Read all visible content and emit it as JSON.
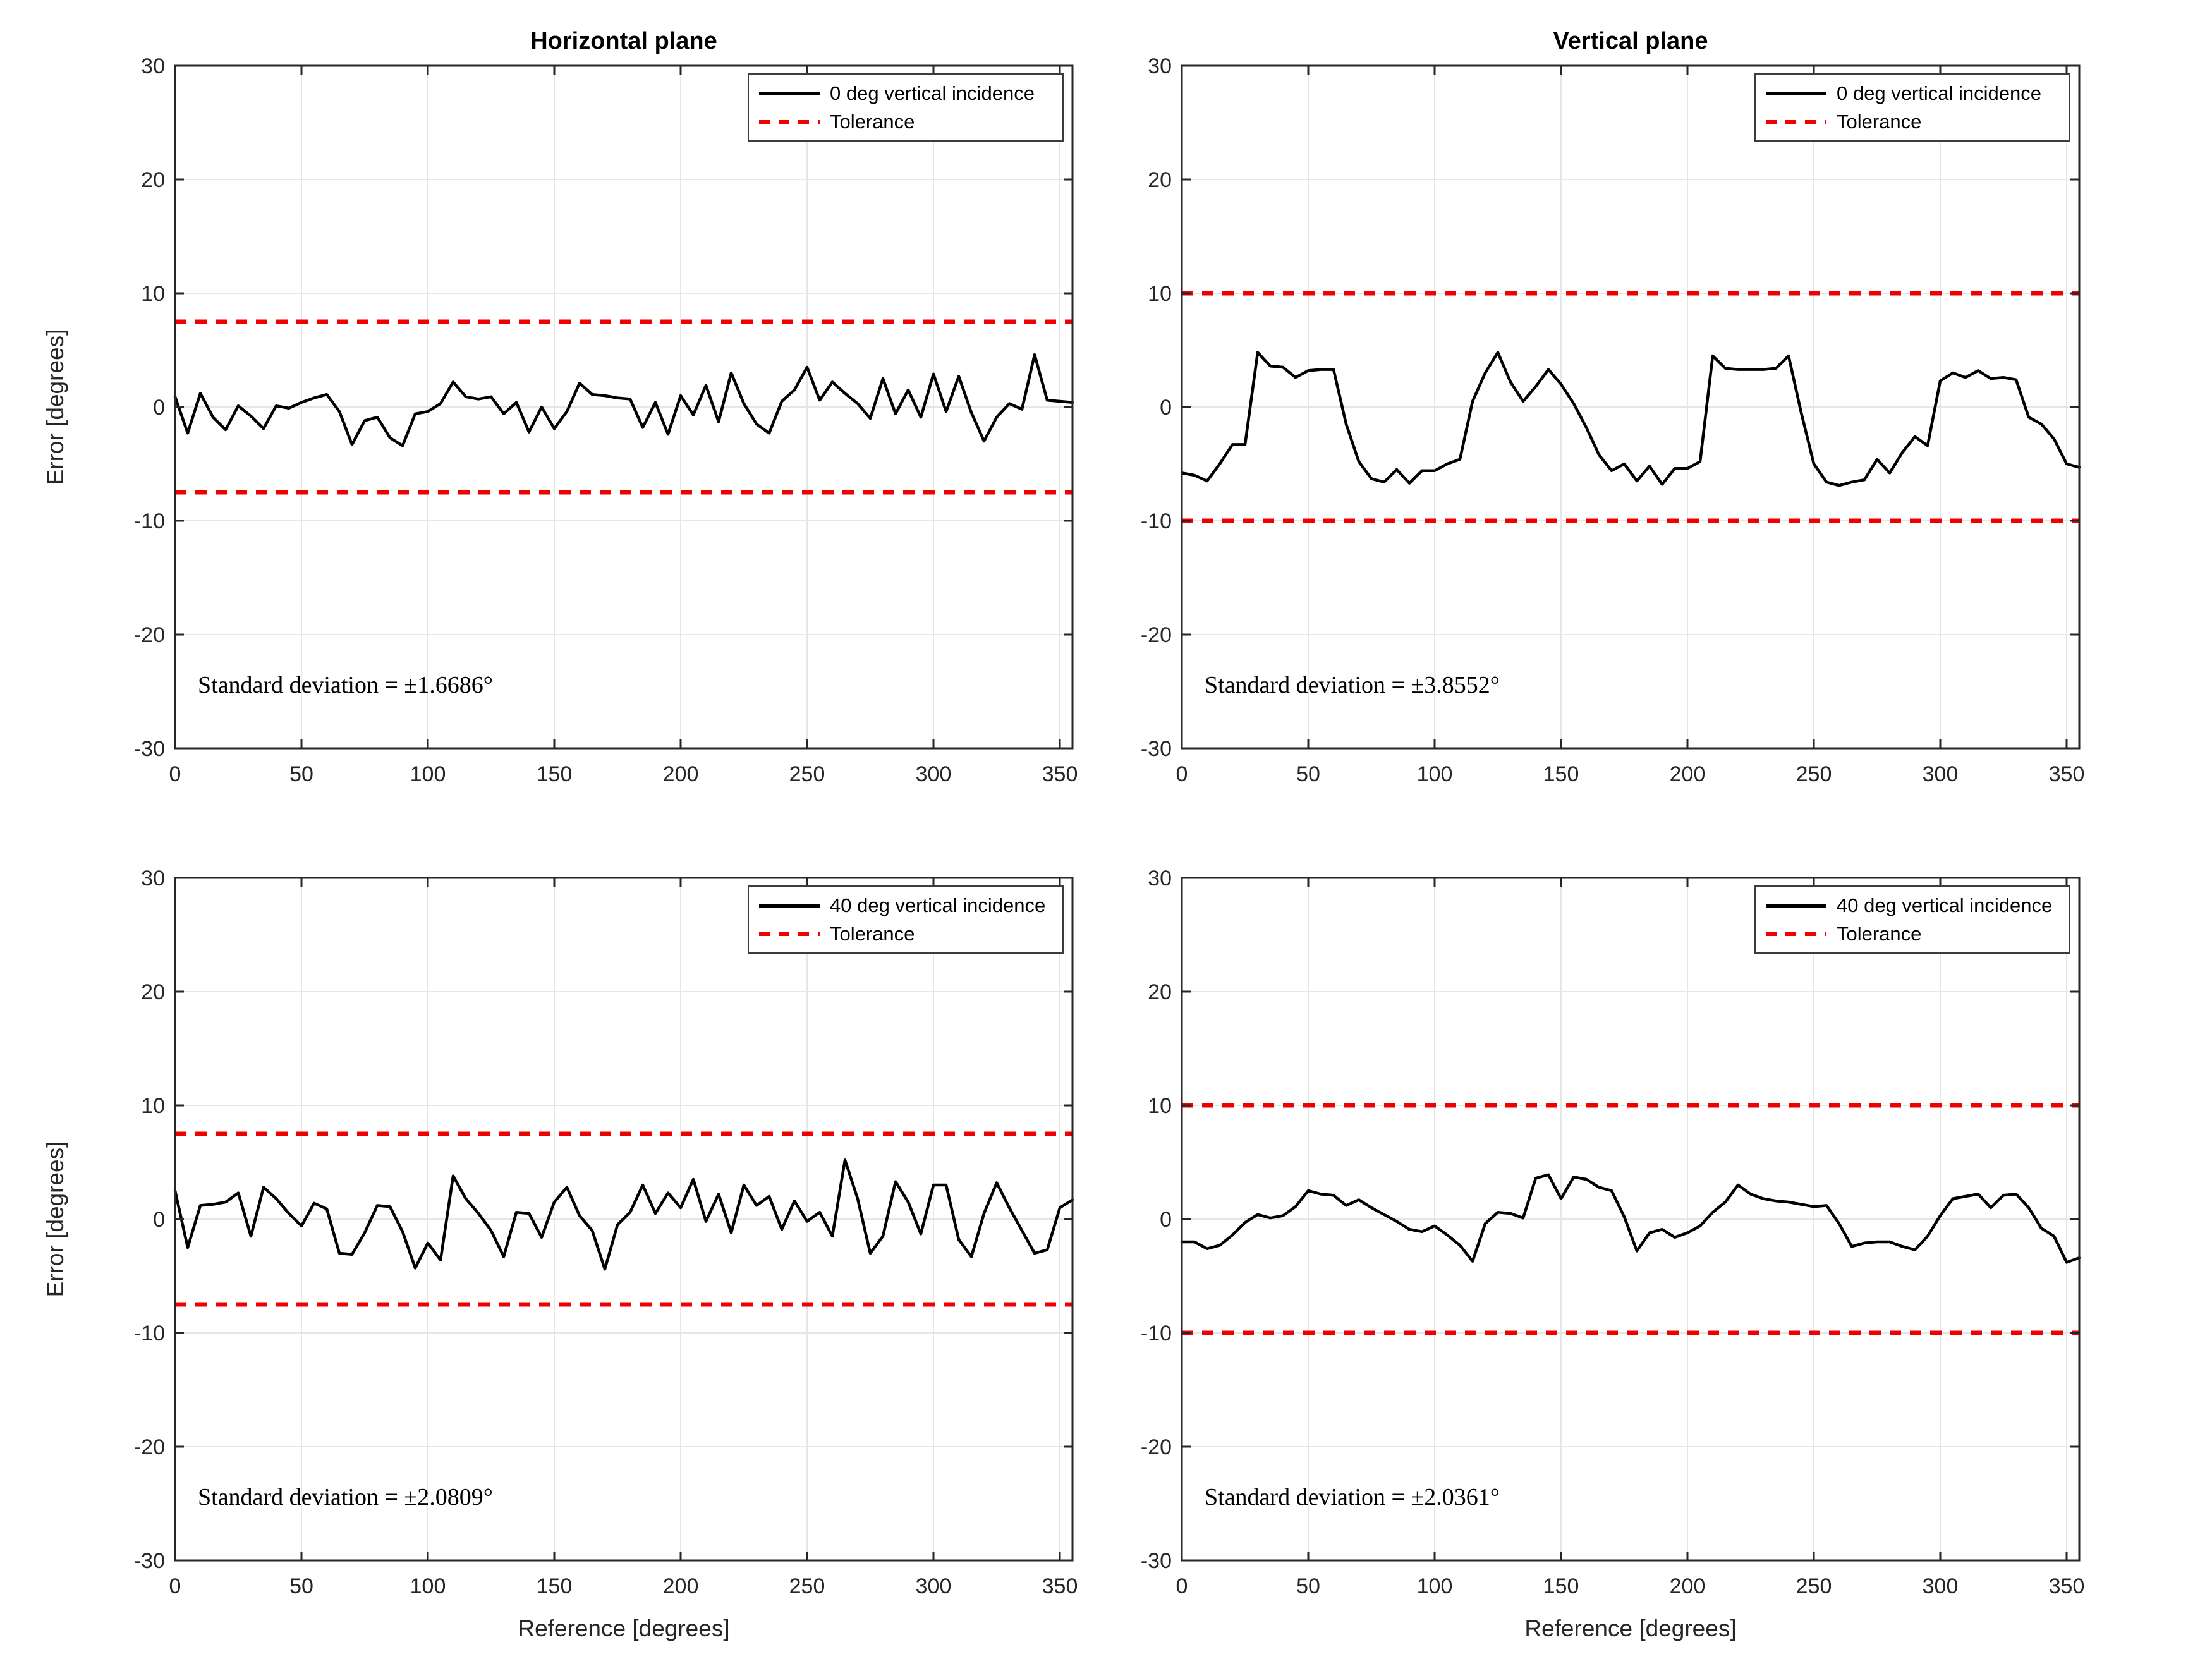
{
  "figure": {
    "background": "#ffffff"
  },
  "chart_data": {
    "type": "line",
    "xlabel": "Reference [degrees]",
    "ylabel": "Error [degrees]",
    "xlim": [
      0,
      355
    ],
    "ylim": [
      -30,
      30
    ],
    "xticks": [
      0,
      50,
      100,
      150,
      200,
      250,
      300,
      350
    ],
    "yticks": [
      -30,
      -20,
      -10,
      0,
      10,
      20,
      30
    ],
    "x_step_degrees": 5,
    "grid": true,
    "legend_position": "top-right",
    "colors": {
      "series": "#000000",
      "tolerance": "#f00000",
      "grid": "#e6e6e6",
      "axis": "#262626"
    },
    "panels": [
      {
        "id": "top-left",
        "title": "Horizontal plane",
        "legend_series": "0 deg vertical incidence",
        "legend_tolerance": "Tolerance",
        "tolerance": 7.5,
        "std_label": "Standard deviation = ±1.6686°",
        "values": [
          0.9,
          -2.3,
          1.2,
          -0.9,
          -2.0,
          0.1,
          -0.8,
          -1.9,
          0.1,
          -0.1,
          0.4,
          0.8,
          1.1,
          -0.4,
          -3.3,
          -1.2,
          -0.9,
          -2.7,
          -3.4,
          -0.6,
          -0.4,
          0.3,
          2.2,
          0.9,
          0.7,
          0.9,
          -0.6,
          0.4,
          -2.2,
          0.0,
          -1.9,
          -0.4,
          2.1,
          1.1,
          1.0,
          0.8,
          0.7,
          -1.8,
          0.4,
          -2.4,
          1.0,
          -0.7,
          1.9,
          -1.3,
          3.0,
          0.3,
          -1.5,
          -2.3,
          0.5,
          1.5,
          3.5,
          0.6,
          2.2,
          1.2,
          0.3,
          -1.0,
          2.5,
          -0.6,
          1.5,
          -0.9,
          2.9,
          -0.4,
          2.7,
          -0.5,
          -3.0,
          -0.9,
          0.3,
          -0.2,
          4.6,
          0.6,
          0.5,
          0.4
        ]
      },
      {
        "id": "top-right",
        "title": "Vertical plane",
        "legend_series": "0 deg vertical incidence",
        "legend_tolerance": "Tolerance",
        "tolerance": 10,
        "std_label": "Standard deviation = ±3.8552°",
        "values": [
          -5.8,
          -6.0,
          -6.5,
          -5.0,
          -3.3,
          -3.3,
          4.8,
          3.6,
          3.5,
          2.6,
          3.2,
          3.3,
          3.3,
          -1.5,
          -4.8,
          -6.3,
          -6.6,
          -5.5,
          -6.7,
          -5.6,
          -5.6,
          -5.0,
          -4.6,
          0.5,
          3.0,
          4.8,
          2.2,
          0.5,
          1.8,
          3.3,
          2.0,
          0.3,
          -1.8,
          -4.2,
          -5.6,
          -5.0,
          -6.5,
          -5.2,
          -6.8,
          -5.4,
          -5.4,
          -4.8,
          4.5,
          3.4,
          3.3,
          3.3,
          3.3,
          3.4,
          4.5,
          -0.5,
          -5.0,
          -6.6,
          -6.9,
          -6.6,
          -6.4,
          -4.6,
          -5.8,
          -4.0,
          -2.6,
          -3.4,
          2.3,
          3.0,
          2.6,
          3.2,
          2.5,
          2.6,
          2.4,
          -0.9,
          -1.5,
          -2.8,
          -5.0,
          -5.3
        ]
      },
      {
        "id": "bottom-left",
        "title": "",
        "legend_series": "40 deg vertical incidence",
        "legend_tolerance": "Tolerance",
        "tolerance": 7.5,
        "std_label": "Standard deviation = ±2.0809°",
        "values": [
          2.5,
          -2.5,
          1.2,
          1.3,
          1.5,
          2.3,
          -1.5,
          2.8,
          1.8,
          0.5,
          -0.6,
          1.4,
          0.9,
          -3.0,
          -3.1,
          -1.2,
          1.2,
          1.1,
          -1.1,
          -4.3,
          -2.1,
          -3.6,
          3.8,
          1.8,
          0.5,
          -1.0,
          -3.3,
          0.6,
          0.5,
          -1.6,
          1.5,
          2.8,
          0.3,
          -1.0,
          -4.4,
          -0.5,
          0.6,
          3.0,
          0.5,
          2.3,
          1.0,
          3.5,
          -0.2,
          2.2,
          -1.2,
          3.0,
          1.2,
          2.0,
          -0.9,
          1.6,
          -0.2,
          0.6,
          -1.5,
          5.2,
          1.8,
          -3.0,
          -1.5,
          3.3,
          1.5,
          -1.3,
          3.0,
          3.0,
          -1.8,
          -3.3,
          0.5,
          3.2,
          1.0,
          -1.0,
          -3.0,
          -2.7,
          1.0,
          1.7
        ]
      },
      {
        "id": "bottom-right",
        "title": "",
        "legend_series": "40 deg vertical incidence",
        "legend_tolerance": "Tolerance",
        "tolerance": 10,
        "std_label": "Standard deviation = ±2.0361°",
        "values": [
          -2.0,
          -2.0,
          -2.6,
          -2.3,
          -1.4,
          -0.3,
          0.4,
          0.1,
          0.3,
          1.1,
          2.5,
          2.2,
          2.1,
          1.2,
          1.7,
          1.0,
          0.4,
          -0.2,
          -0.9,
          -1.1,
          -0.6,
          -1.4,
          -2.3,
          -3.7,
          -0.4,
          0.6,
          0.5,
          0.1,
          3.6,
          3.9,
          1.8,
          3.7,
          3.5,
          2.8,
          2.5,
          0.2,
          -2.8,
          -1.2,
          -0.9,
          -1.6,
          -1.2,
          -0.6,
          0.6,
          1.5,
          3.0,
          2.2,
          1.8,
          1.6,
          1.5,
          1.3,
          1.1,
          1.2,
          -0.4,
          -2.4,
          -2.1,
          -2.0,
          -2.0,
          -2.4,
          -2.7,
          -1.5,
          0.3,
          1.8,
          2.0,
          2.2,
          1.0,
          2.1,
          2.2,
          1.0,
          -0.8,
          -1.5,
          -3.8,
          -3.4
        ]
      }
    ]
  }
}
